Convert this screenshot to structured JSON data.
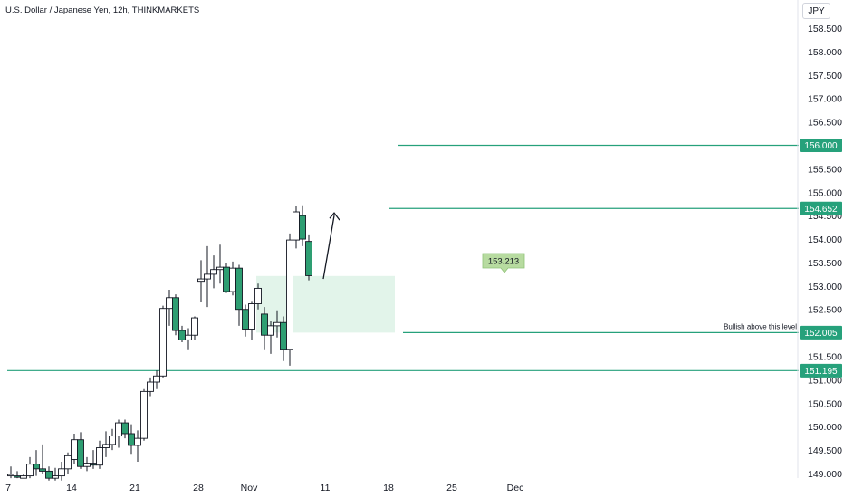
{
  "header": {
    "title": "U.S. Dollar / Japanese Yen, 12h, THINKMARKETS"
  },
  "currency_badge": "JPY",
  "colors": {
    "accent": "#26a17b",
    "up_fill": "#ffffff",
    "down_fill": "#2e9e72",
    "candle_outline": "#131722",
    "zone_fill": "#e2f4ea",
    "callout_fill": "#b7dba0",
    "text": "#131722"
  },
  "chart_data": {
    "type": "candlestick",
    "title": "U.S. Dollar / Japanese Yen, 12h, THINKMARKETS",
    "ylim": [
      149.0,
      158.85
    ],
    "y_ticks": [
      "149.000",
      "149.500",
      "150.000",
      "150.500",
      "151.000",
      "151.500",
      "152.000",
      "152.500",
      "153.000",
      "153.500",
      "154.000",
      "154.500",
      "155.000",
      "155.500",
      "156.000",
      "156.500",
      "157.000",
      "157.500",
      "158.000",
      "158.500"
    ],
    "x_ticks": [
      {
        "label": "7",
        "date": "2024-10-07"
      },
      {
        "label": "14",
        "date": "2024-10-14"
      },
      {
        "label": "21",
        "date": "2024-10-21"
      },
      {
        "label": "28",
        "date": "2024-10-28"
      },
      {
        "label": "Nov",
        "date": "2024-11-01"
      },
      {
        "label": "11",
        "date": "2024-11-11"
      },
      {
        "label": "18",
        "date": "2024-11-18"
      },
      {
        "label": "25",
        "date": "2024-11-25"
      },
      {
        "label": "Dec",
        "date": "2024-12-01"
      }
    ],
    "grid": false,
    "candles": [
      {
        "t": "2024-10-07 00:00",
        "o": 148.95,
        "h": 149.15,
        "l": 148.9,
        "c": 148.98
      },
      {
        "t": "2024-10-07 12:00",
        "o": 148.95,
        "h": 149.05,
        "l": 148.9,
        "c": 148.92
      },
      {
        "t": "2024-10-08 00:00",
        "o": 148.9,
        "h": 149.0,
        "l": 148.9,
        "c": 148.95
      },
      {
        "t": "2024-10-08 12:00",
        "o": 148.95,
        "h": 149.35,
        "l": 148.9,
        "c": 149.2
      },
      {
        "t": "2024-10-09 00:00",
        "o": 149.2,
        "h": 149.5,
        "l": 148.95,
        "c": 149.1
      },
      {
        "t": "2024-10-09 12:00",
        "o": 149.1,
        "h": 149.62,
        "l": 148.98,
        "c": 149.05
      },
      {
        "t": "2024-10-10 00:00",
        "o": 149.05,
        "h": 149.15,
        "l": 148.85,
        "c": 148.9
      },
      {
        "t": "2024-10-10 12:00",
        "o": 148.9,
        "h": 149.12,
        "l": 148.85,
        "c": 148.95
      },
      {
        "t": "2024-10-11 00:00",
        "o": 148.95,
        "h": 149.25,
        "l": 148.85,
        "c": 149.1
      },
      {
        "t": "2024-10-11 12:00",
        "o": 149.1,
        "h": 149.45,
        "l": 149.0,
        "c": 149.38
      },
      {
        "t": "2024-10-14 00:00",
        "o": 149.3,
        "h": 149.85,
        "l": 149.2,
        "c": 149.72
      },
      {
        "t": "2024-10-14 12:00",
        "o": 149.72,
        "h": 149.88,
        "l": 149.1,
        "c": 149.15
      },
      {
        "t": "2024-10-15 00:00",
        "o": 149.15,
        "h": 149.35,
        "l": 149.05,
        "c": 149.22
      },
      {
        "t": "2024-10-15 12:00",
        "o": 149.22,
        "h": 149.5,
        "l": 149.1,
        "c": 149.18
      },
      {
        "t": "2024-10-16 00:00",
        "o": 149.18,
        "h": 149.7,
        "l": 149.1,
        "c": 149.55
      },
      {
        "t": "2024-10-16 12:00",
        "o": 149.55,
        "h": 149.9,
        "l": 149.35,
        "c": 149.62
      },
      {
        "t": "2024-10-17 00:00",
        "o": 149.62,
        "h": 149.95,
        "l": 149.5,
        "c": 149.8
      },
      {
        "t": "2024-10-17 12:00",
        "o": 149.8,
        "h": 150.15,
        "l": 149.55,
        "c": 150.08
      },
      {
        "t": "2024-10-18 00:00",
        "o": 150.08,
        "h": 150.15,
        "l": 149.75,
        "c": 149.85
      },
      {
        "t": "2024-10-18 12:00",
        "o": 149.85,
        "h": 150.05,
        "l": 149.42,
        "c": 149.6
      },
      {
        "t": "2024-10-21 00:00",
        "o": 149.6,
        "h": 149.92,
        "l": 149.25,
        "c": 149.75
      },
      {
        "t": "2024-10-21 12:00",
        "o": 149.75,
        "h": 150.8,
        "l": 149.7,
        "c": 150.75
      },
      {
        "t": "2024-10-22 00:00",
        "o": 150.75,
        "h": 151.05,
        "l": 150.65,
        "c": 150.95
      },
      {
        "t": "2024-10-22 12:00",
        "o": 150.95,
        "h": 151.2,
        "l": 150.8,
        "c": 151.08
      },
      {
        "t": "2024-10-23 00:00",
        "o": 151.08,
        "h": 152.58,
        "l": 151.05,
        "c": 152.52
      },
      {
        "t": "2024-10-23 12:00",
        "o": 152.52,
        "h": 152.92,
        "l": 152.15,
        "c": 152.75
      },
      {
        "t": "2024-10-24 00:00",
        "o": 152.75,
        "h": 152.82,
        "l": 151.95,
        "c": 152.05
      },
      {
        "t": "2024-10-24 12:00",
        "o": 152.05,
        "h": 152.15,
        "l": 151.8,
        "c": 151.85
      },
      {
        "t": "2024-10-25 00:00",
        "o": 151.85,
        "h": 152.1,
        "l": 151.65,
        "c": 151.95
      },
      {
        "t": "2024-10-25 12:00",
        "o": 151.95,
        "h": 152.35,
        "l": 151.85,
        "c": 152.32
      },
      {
        "t": "2024-10-28 00:00",
        "o": 153.1,
        "h": 153.55,
        "l": 152.65,
        "c": 153.15
      },
      {
        "t": "2024-10-28 12:00",
        "o": 153.15,
        "h": 153.85,
        "l": 152.55,
        "c": 153.25
      },
      {
        "t": "2024-10-29 00:00",
        "o": 153.25,
        "h": 153.65,
        "l": 152.95,
        "c": 153.35
      },
      {
        "t": "2024-10-29 12:00",
        "o": 153.35,
        "h": 153.88,
        "l": 153.05,
        "c": 153.4
      },
      {
        "t": "2024-10-30 00:00",
        "o": 153.4,
        "h": 153.5,
        "l": 152.85,
        "c": 152.88
      },
      {
        "t": "2024-10-30 12:00",
        "o": 152.88,
        "h": 153.52,
        "l": 152.8,
        "c": 153.38
      },
      {
        "t": "2024-10-31 00:00",
        "o": 153.38,
        "h": 153.45,
        "l": 152.15,
        "c": 152.5
      },
      {
        "t": "2024-10-31 12:00",
        "o": 152.5,
        "h": 152.6,
        "l": 151.92,
        "c": 152.08
      },
      {
        "t": "2024-11-01 00:00",
        "o": 152.08,
        "h": 152.68,
        "l": 151.85,
        "c": 152.62
      },
      {
        "t": "2024-11-01 12:00",
        "o": 152.62,
        "h": 153.05,
        "l": 152.5,
        "c": 152.95
      },
      {
        "t": "2024-11-04 00:00",
        "o": 152.4,
        "h": 152.55,
        "l": 151.65,
        "c": 151.95
      },
      {
        "t": "2024-11-04 12:00",
        "o": 151.95,
        "h": 152.25,
        "l": 151.55,
        "c": 152.15
      },
      {
        "t": "2024-11-05 00:00",
        "o": 152.15,
        "h": 152.48,
        "l": 151.9,
        "c": 152.22
      },
      {
        "t": "2024-11-05 12:00",
        "o": 152.22,
        "h": 152.35,
        "l": 151.4,
        "c": 151.65
      },
      {
        "t": "2024-11-06 00:00",
        "o": 151.65,
        "h": 154.12,
        "l": 151.3,
        "c": 153.98
      },
      {
        "t": "2024-11-06 12:00",
        "o": 153.98,
        "h": 154.7,
        "l": 153.8,
        "c": 154.58
      },
      {
        "t": "2024-11-07 00:00",
        "o": 154.5,
        "h": 154.72,
        "l": 153.85,
        "c": 154.0
      },
      {
        "t": "2024-11-07 12:00",
        "o": 153.95,
        "h": 154.1,
        "l": 153.12,
        "c": 153.22
      }
    ],
    "levels": [
      {
        "value": 156.0,
        "label": "156.000"
      },
      {
        "value": 154.652,
        "label": "154.652"
      },
      {
        "value": 152.005,
        "label": "152.005",
        "note": "Bullish above this level"
      },
      {
        "value": 151.195,
        "label": "151.195"
      }
    ],
    "zone": {
      "from": "2024-11-01 00:00",
      "to": "2024-11-18 12:00",
      "top": 153.213,
      "bottom": 152.005
    },
    "callout": {
      "label": "153.213",
      "value": 153.213
    },
    "arrow": {
      "from": {
        "t": "2024-11-08 00:00",
        "y": 153.15
      },
      "to": {
        "t": "2024-11-09 00:00",
        "y": 154.5
      }
    }
  }
}
